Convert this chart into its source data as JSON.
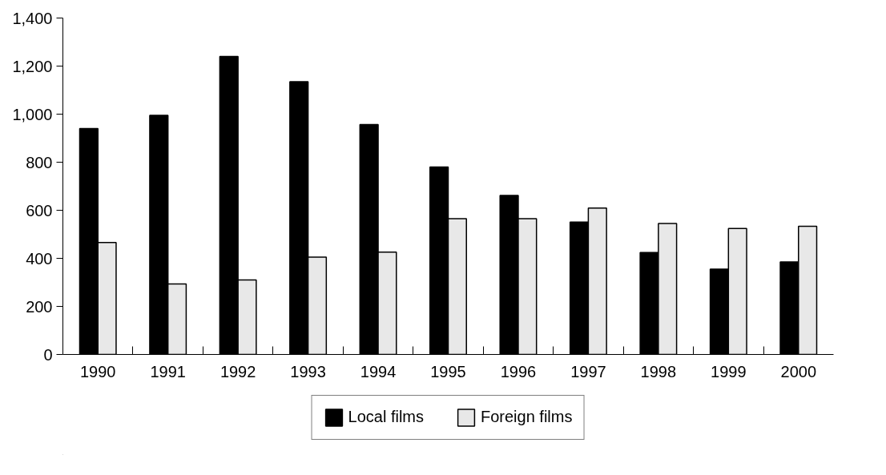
{
  "chart_data": {
    "type": "bar",
    "categories": [
      "1990",
      "1991",
      "1992",
      "1993",
      "1994",
      "1995",
      "1996",
      "1997",
      "1998",
      "1999",
      "2000"
    ],
    "series": [
      {
        "name": "Local films",
        "color": "#000000",
        "values": [
          940,
          995,
          1240,
          1135,
          957,
          780,
          662,
          551,
          424,
          355,
          385
        ]
      },
      {
        "name": "Foreign films",
        "color": "#e8e8e8",
        "values": [
          466,
          293,
          310,
          405,
          426,
          565,
          565,
          609,
          545,
          524,
          533
        ]
      }
    ],
    "ylim": [
      0,
      1400
    ],
    "yticks": [
      0,
      200,
      400,
      600,
      800,
      {
        "value": 1000,
        "label": "1,000"
      },
      {
        "value": 1200,
        "label": "1,200"
      },
      {
        "value": 1400,
        "label": "1,400"
      }
    ],
    "grid": false,
    "legend": "bottom"
  }
}
